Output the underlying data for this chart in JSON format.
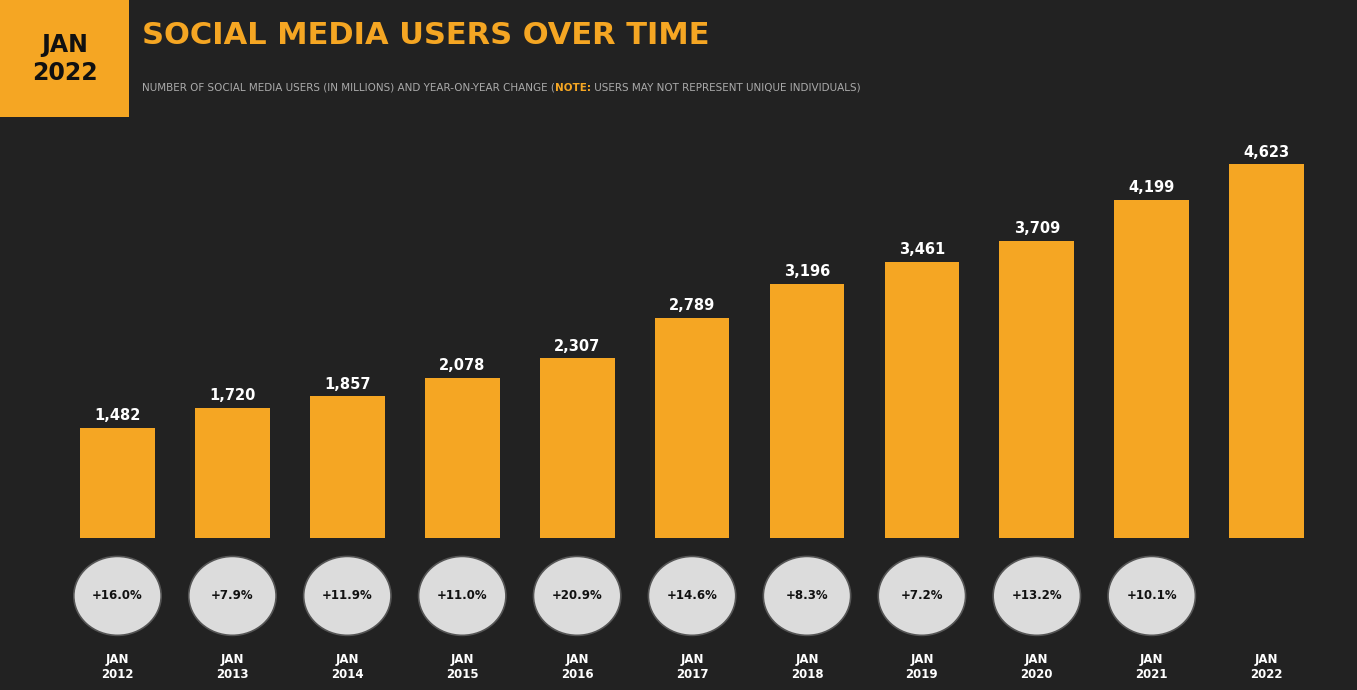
{
  "years": [
    "JAN\n2012",
    "JAN\n2013",
    "JAN\n2014",
    "JAN\n2015",
    "JAN\n2016",
    "JAN\n2017",
    "JAN\n2018",
    "JAN\n2019",
    "JAN\n2020",
    "JAN\n2021",
    "JAN\n2022"
  ],
  "values": [
    1482,
    1720,
    1857,
    2078,
    2307,
    2789,
    3196,
    3461,
    3709,
    4199,
    4623
  ],
  "value_labels": [
    "1,482",
    "1,720",
    "1,857",
    "2,078",
    "2,307",
    "2,789",
    "3,196",
    "3,461",
    "3,709",
    "4,199",
    "4,623"
  ],
  "yoy": [
    "+16.0%",
    "+7.9%",
    "+11.9%",
    "+11.0%",
    "+20.9%",
    "+14.6%",
    "+8.3%",
    "+7.2%",
    "+13.2%",
    "+10.1%",
    null
  ],
  "bar_color": "#F5A623",
  "background_color": "#222222",
  "title": "SOCIAL MEDIA USERS OVER TIME",
  "subtitle_part1": "NUMBER OF SOCIAL MEDIA USERS (IN MILLIONS) AND YEAR-ON-YEAR CHANGE (",
  "subtitle_note": "NOTE:",
  "subtitle_part2": " USERS MAY NOT REPRESENT UNIQUE INDIVIDUALS)",
  "header_box_color": "#F5A623",
  "header_text": "JAN\n2022",
  "title_color": "#F5A623",
  "subtitle_color": "#aaaaaa",
  "note_color": "#F5A623",
  "bar_value_color": "#ffffff",
  "yoy_circle_bg": "#dcdcdc",
  "yoy_text_color": "#111111",
  "xlabel_color": "#ffffff",
  "ylim_max": 5100,
  "n_bars": 11
}
